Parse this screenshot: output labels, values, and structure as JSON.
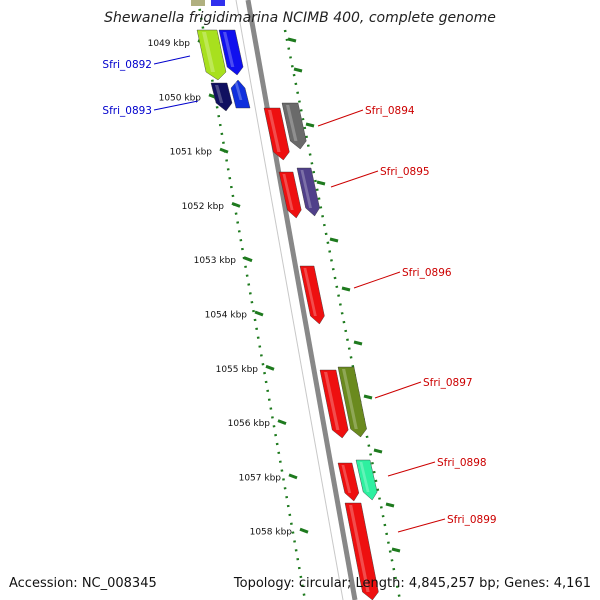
{
  "title": "Shewanella frigidimarina NCIMB 400, complete genome",
  "accession": "Accession: NC_008345",
  "summary": "Topology: circular; Length: 4,845,257 bp; Genes: 4,161",
  "colors": {
    "backbone": "#888888",
    "dotted_ring": "#1e7a1e",
    "forward_label": "#cc0000",
    "reverse_label": "#0000cc"
  },
  "kbp_labels": [
    "1049 kbp",
    "1050 kbp",
    "1051 kbp",
    "1052 kbp",
    "1053 kbp",
    "1054 kbp",
    "1055 kbp",
    "1056 kbp",
    "1057 kbp",
    "1058 kbp"
  ],
  "genes": [
    {
      "label": "Sfri_0892",
      "strand": "reverse",
      "color": "#0000cc",
      "features": [
        "#a8e01e",
        "#1010ee"
      ]
    },
    {
      "label": "Sfri_0893",
      "strand": "reverse",
      "color": "#0000cc",
      "features": [
        "#101060",
        "#1030dd"
      ]
    },
    {
      "label": "Sfri_0894",
      "strand": "forward",
      "color": "#cc0000",
      "features": [
        "#ee1010",
        "#6a6a6a"
      ]
    },
    {
      "label": "Sfri_0895",
      "strand": "forward",
      "color": "#cc0000",
      "features": [
        "#ee1010",
        "#50408a"
      ]
    },
    {
      "label": "Sfri_0896",
      "strand": "forward",
      "color": "#cc0000",
      "features": [
        "#ee1010"
      ]
    },
    {
      "label": "Sfri_0897",
      "strand": "forward",
      "color": "#cc0000",
      "features": [
        "#ee1010",
        "#6a8a1e"
      ]
    },
    {
      "label": "Sfri_0898",
      "strand": "forward",
      "color": "#cc0000",
      "features": [
        "#ee1010",
        "#2ef0a0"
      ]
    },
    {
      "label": "Sfri_0899",
      "strand": "forward",
      "color": "#cc0000",
      "features": [
        "#ee1010"
      ]
    }
  ]
}
